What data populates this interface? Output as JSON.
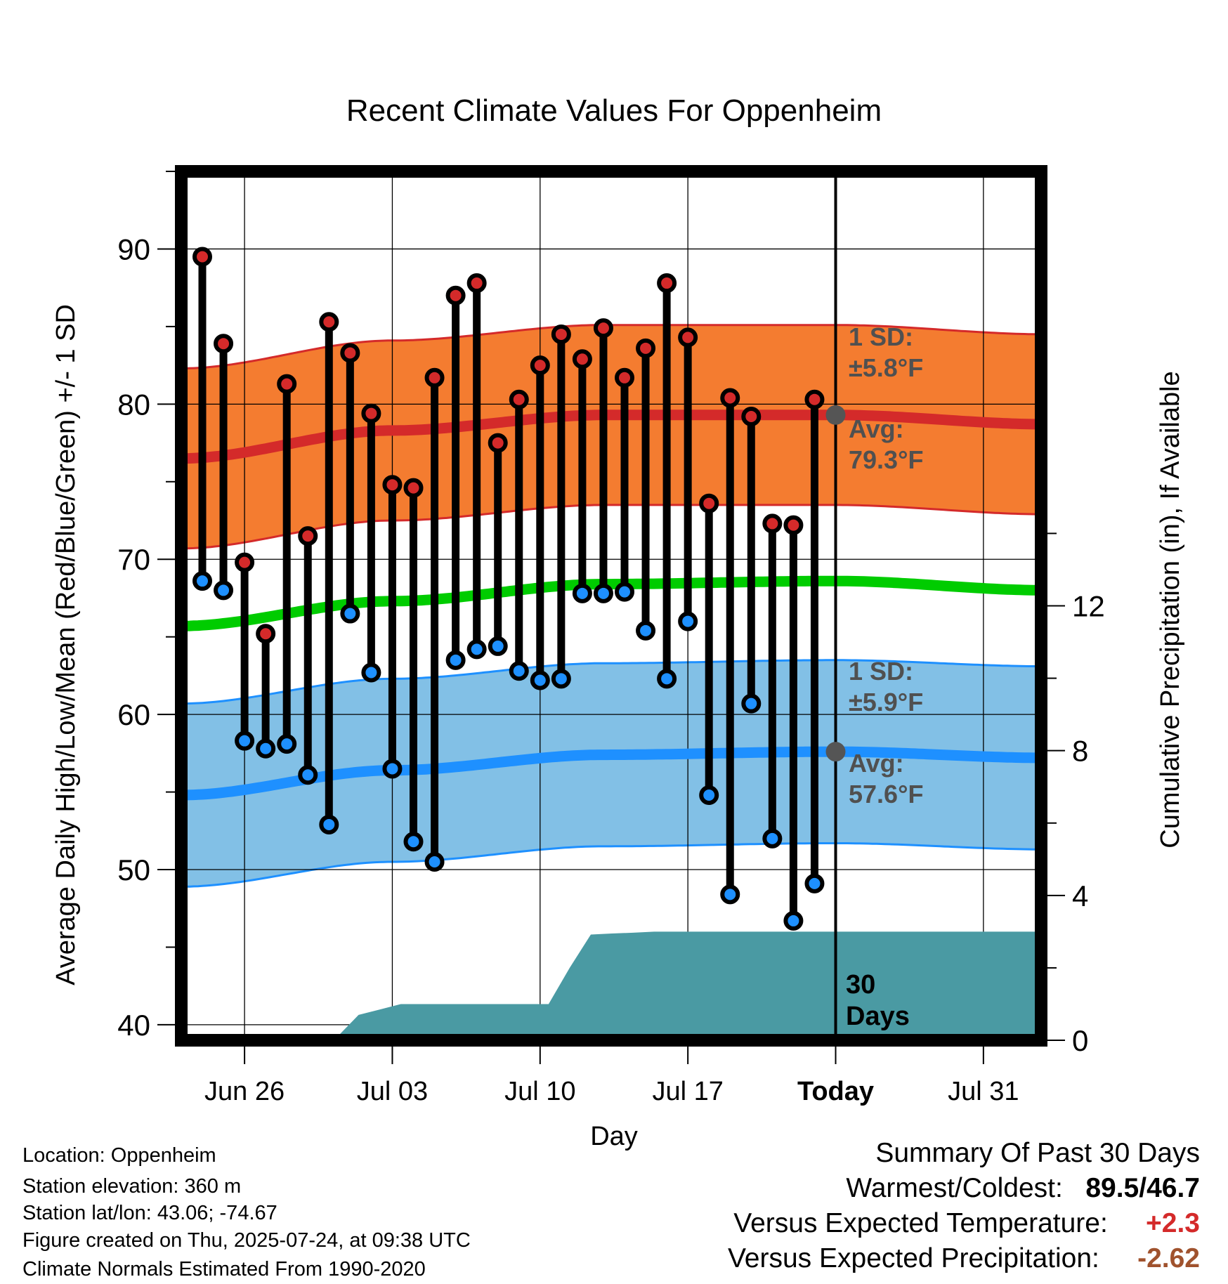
{
  "chart_data": {
    "type": "line",
    "title": "Recent Climate Values For Oppenheim",
    "xlabel": "Day",
    "ylabel": "Average Daily High/Low/Mean (Red/Blue/Green) +/- 1 SD",
    "ylabel_right": "Cumulative Precipitation (in), If Available",
    "ylim": [
      39,
      95
    ],
    "ylim_right": [
      0,
      24
    ],
    "grid": true,
    "x_tick_labels": [
      "Jun 26",
      "Jul 03",
      "Jul 10",
      "Jul 17",
      "Today",
      "Jul 31"
    ],
    "y_tick_labels": [
      "40",
      "50",
      "60",
      "70",
      "80",
      "90"
    ],
    "y_right_tick_labels": [
      "0",
      "4",
      "8",
      "12"
    ],
    "today_marker": "Today",
    "days": [
      "Jun 24",
      "Jun 25",
      "Jun 26",
      "Jun 27",
      "Jun 28",
      "Jun 29",
      "Jun 30",
      "Jul 01",
      "Jul 02",
      "Jul 03",
      "Jul 04",
      "Jul 05",
      "Jul 06",
      "Jul 07",
      "Jul 08",
      "Jul 09",
      "Jul 10",
      "Jul 11",
      "Jul 12",
      "Jul 13",
      "Jul 14",
      "Jul 15",
      "Jul 16",
      "Jul 17",
      "Jul 18",
      "Jul 19",
      "Jul 20",
      "Jul 21",
      "Jul 22",
      "Jul 23"
    ],
    "daily_high": [
      89.5,
      83.9,
      69.8,
      65.2,
      81.3,
      71.5,
      85.3,
      83.3,
      79.4,
      74.8,
      74.6,
      81.7,
      87.0,
      87.8,
      77.5,
      80.3,
      82.5,
      84.5,
      82.9,
      84.9,
      81.7,
      83.6,
      87.8,
      84.3,
      73.6,
      80.4,
      79.2,
      72.3,
      72.2,
      80.3
    ],
    "daily_low": [
      68.6,
      68.0,
      58.3,
      57.8,
      58.1,
      56.1,
      52.9,
      66.5,
      62.7,
      56.5,
      51.8,
      50.5,
      63.5,
      64.2,
      64.4,
      62.8,
      62.2,
      62.3,
      67.8,
      67.8,
      67.9,
      65.4,
      62.3,
      66.0,
      54.8,
      48.4,
      60.7,
      52.0,
      46.7,
      49.1
    ],
    "normal_days": [
      "Jun 23",
      "Jul 03",
      "Jul 13",
      "Jul 24",
      "Aug 03"
    ],
    "normal_high": [
      76.5,
      78.3,
      79.3,
      79.3,
      78.7
    ],
    "normal_low": [
      54.8,
      56.4,
      57.4,
      57.6,
      57.2
    ],
    "normal_mean": [
      65.7,
      67.3,
      68.4,
      68.6,
      68.0
    ],
    "sd_high": 5.8,
    "sd_low": 5.9,
    "precip_cumulative": [
      0,
      0,
      0,
      0,
      0,
      0.02,
      0.05,
      0.1,
      0.7,
      0.85,
      1.0,
      1.0,
      1.0,
      1.0,
      1.0,
      1.0,
      1.0,
      1.0,
      2.0,
      2.92,
      2.95,
      2.97,
      3.0,
      3.0,
      3.0,
      3.0,
      3.0,
      3.0,
      3.0,
      3.0,
      3.0
    ],
    "series": [
      {
        "name": "",
        "color": "#d42a2a"
      },
      {
        "name": "",
        "color": "#1e90ff"
      },
      {
        "name": "",
        "color": "#00cc00"
      }
    ],
    "annotations": {
      "high_sd_line1": "1 SD:",
      "high_sd_line2": "±5.8°F",
      "high_avg_line1": "Avg:",
      "high_avg_line2": "79.3°F",
      "low_sd_line1": "1 SD:",
      "low_sd_line2": "±5.9°F",
      "low_avg_line1": "Avg:",
      "low_avg_line2": "57.6°F",
      "precip_line1": "30",
      "precip_line2": "Days"
    },
    "colors": {
      "high_band": "#f47c30",
      "high_line": "#d42a2a",
      "low_band": "#82c0e6",
      "low_line": "#1e90ff",
      "mean_line": "#00cc00",
      "precip_fill": "#4a9aa3",
      "annotation_text": "#505050"
    }
  },
  "info": {
    "location": "Location: Oppenheim",
    "elevation": "Station elevation: 360 m",
    "latlon": "Station lat/lon: 43.06; -74.67",
    "created": "Figure created on Thu, 2025-07-24, at 09:38 UTC",
    "normals": "Climate Normals Estimated From 1990-2020"
  },
  "summary": {
    "heading": "Summary Of Past 30 Days",
    "warm_cold_label": "Warmest/Coldest:",
    "warmest": "89.5",
    "separator": "/",
    "coldest": "46.7",
    "temp_label": "Versus Expected Temperature:",
    "temp_value": "+2.3",
    "temp_color": "#d42a2a",
    "precip_label": "Versus Expected Precipitation:",
    "precip_value": "-2.62",
    "precip_color": "#a0522d"
  }
}
